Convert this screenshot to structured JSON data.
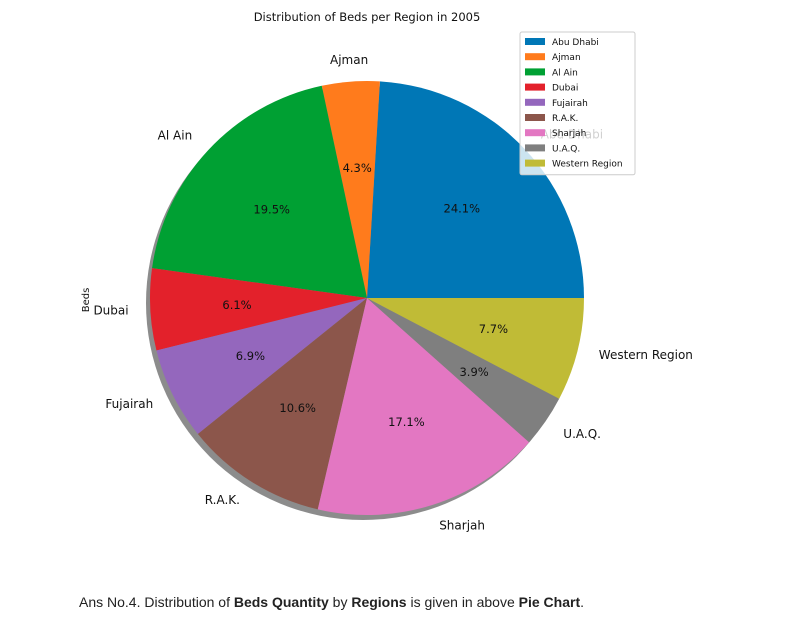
{
  "chart_data": {
    "type": "pie",
    "title": "Distribution of Beds per Region in 2005",
    "ylabel": "Beds",
    "categories": [
      "Abu Dhabi",
      "Ajman",
      "Al Ain",
      "Dubai",
      "Fujairah",
      "R.A.K.",
      "Sharjah",
      "U.A.Q.",
      "Western Region"
    ],
    "values": [
      24.1,
      4.3,
      19.5,
      6.1,
      6.9,
      10.6,
      17.1,
      3.9,
      7.7
    ],
    "pct_labels": [
      "24.1%",
      "4.3%",
      "19.5%",
      "6.1%",
      "6.9%",
      "10.6%",
      "17.1%",
      "3.9%",
      "7.7%"
    ],
    "colors": [
      "#0077b6",
      "#ff7b1c",
      "#00a033",
      "#e3212b",
      "#9467bd",
      "#8c564b",
      "#e377c2",
      "#7f7f7f",
      "#c0bb36"
    ],
    "legend": {
      "placement": "top-right",
      "entries": [
        "Abu Dhabi",
        "Ajman",
        "Al Ain",
        "Dubai",
        "Fujairah",
        "R.A.K.",
        "Sharjah",
        "U.A.Q.",
        "Western Region"
      ]
    },
    "shadow": true
  },
  "caption": {
    "prefix": "Ans No.4. Distribution of ",
    "bold1": "Beds Quantity",
    "mid1": " by ",
    "bold2": "Regions",
    "mid2": " is given in above ",
    "bold3": "Pie Chart",
    "suffix": "."
  }
}
